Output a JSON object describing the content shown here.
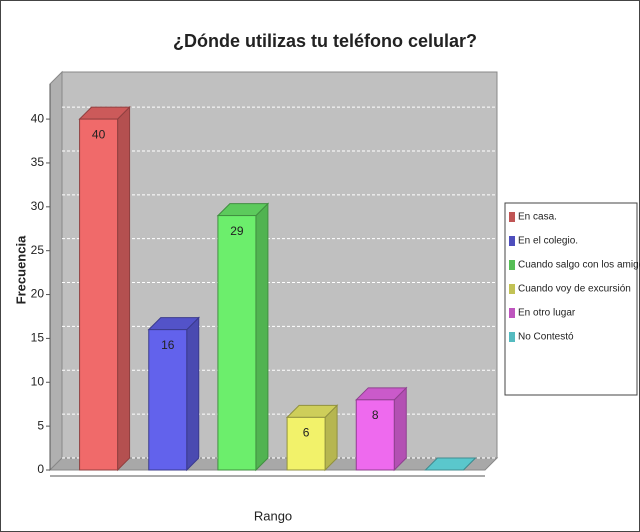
{
  "chart_data": {
    "type": "bar3d",
    "title": "¿Dónde utilizas tu teléfono celular?",
    "x_label": "Rango",
    "y_label": "Frecuencia",
    "series": [
      {
        "name": "En casa.",
        "color": "#f06a6a",
        "values": [
          40
        ]
      },
      {
        "name": "En el colegio.",
        "color": "#6262ec",
        "values": [
          16
        ]
      },
      {
        "name": "Cuando salgo con los amigos",
        "color": "#6cee6c",
        "values": [
          29
        ]
      },
      {
        "name": "Cuando voy de excursión",
        "color": "#f2f26a",
        "values": [
          6
        ]
      },
      {
        "name": "En otro lugar",
        "color": "#ee6aee",
        "values": [
          8
        ]
      },
      {
        "name": "No Contestó",
        "color": "#6aeaf0",
        "values": [
          0
        ]
      }
    ],
    "ylim": [
      0,
      44
    ],
    "yticks": [
      0,
      5,
      10,
      15,
      20,
      25,
      30,
      35,
      40
    ],
    "grid": true,
    "legend": "right"
  }
}
